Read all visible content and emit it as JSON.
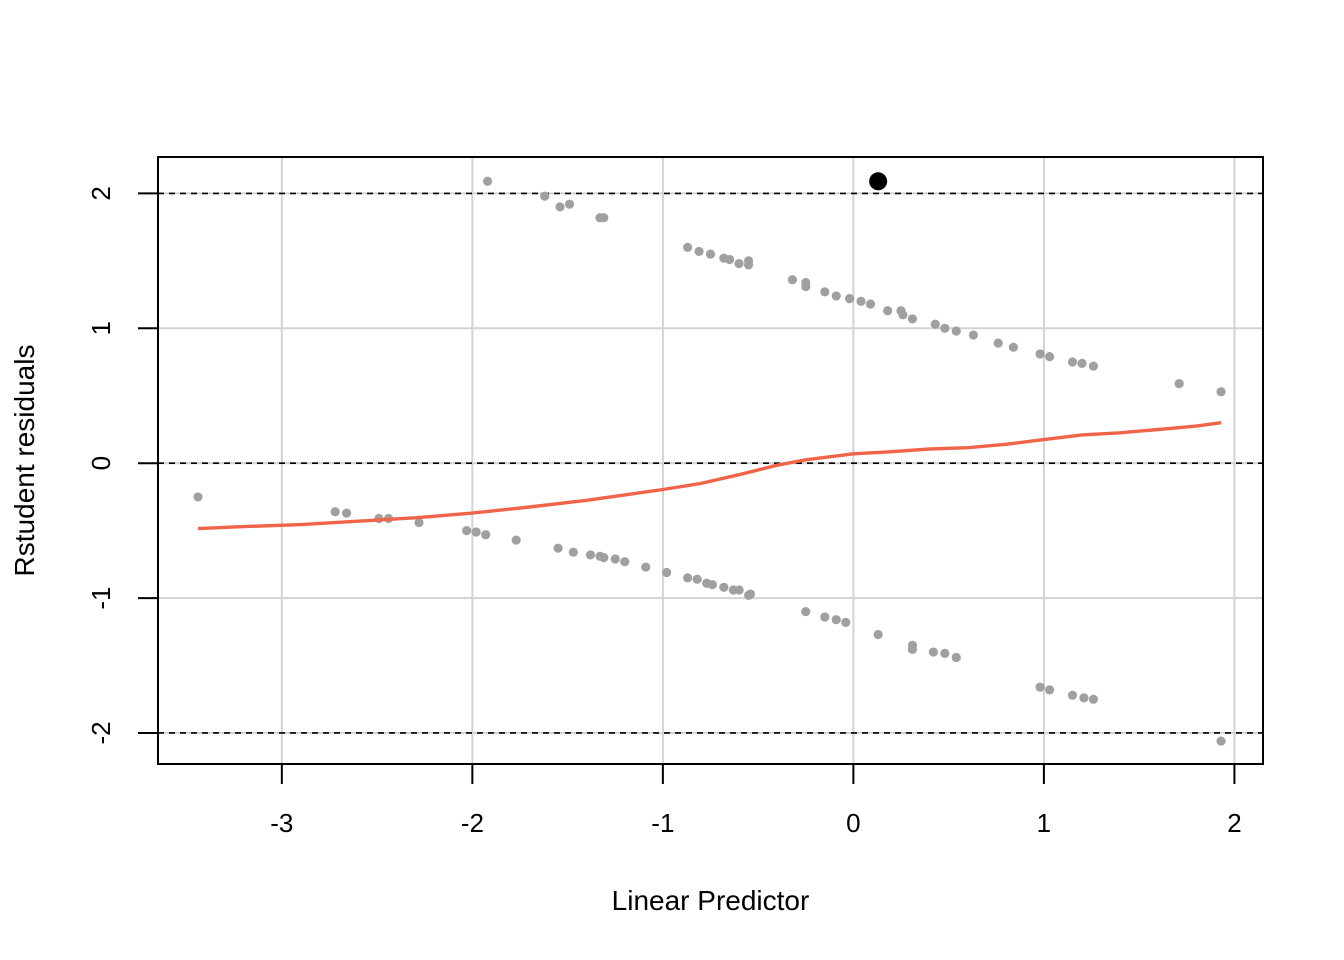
{
  "chart_data": {
    "type": "scatter",
    "title": "",
    "xlabel": "Linear Predictor",
    "ylabel": "Rstudent residuals",
    "xlim": [
      -3.65,
      2.15
    ],
    "ylim": [
      -2.23,
      2.27
    ],
    "xticks": [
      -3,
      -2,
      -1,
      0,
      1,
      2
    ],
    "yticks": [
      -2,
      -1,
      0,
      1,
      2
    ],
    "grid": true,
    "reference_lines": [
      -2,
      0,
      2
    ],
    "colors": {
      "points": "#a0a0a0",
      "smooth": "#f0654a",
      "highlight": "#000000",
      "grid": "#d3d3d3"
    },
    "series": [
      {
        "kind": "points",
        "points": [
          [
            -3.44,
            -0.25
          ],
          [
            -2.72,
            -0.36
          ],
          [
            -2.66,
            -0.37
          ],
          [
            -2.49,
            -0.41
          ],
          [
            -2.44,
            -0.41
          ],
          [
            -2.28,
            -0.44
          ],
          [
            -2.03,
            -0.5
          ],
          [
            -1.98,
            -0.51
          ],
          [
            -1.93,
            -0.53
          ],
          [
            -1.77,
            -0.57
          ],
          [
            -1.55,
            -0.63
          ],
          [
            -1.47,
            -0.66
          ],
          [
            -1.38,
            -0.68
          ],
          [
            -1.33,
            -0.69
          ],
          [
            -1.31,
            -0.7
          ],
          [
            -1.25,
            -0.71
          ],
          [
            -1.2,
            -0.73
          ],
          [
            -1.09,
            -0.77
          ],
          [
            -0.98,
            -0.81
          ],
          [
            -0.87,
            -0.85
          ],
          [
            -0.82,
            -0.86
          ],
          [
            -0.77,
            -0.89
          ],
          [
            -0.74,
            -0.9
          ],
          [
            -0.68,
            -0.92
          ],
          [
            -0.63,
            -0.94
          ],
          [
            -0.6,
            -0.94
          ],
          [
            -0.54,
            -0.97
          ],
          [
            -0.55,
            -0.98
          ],
          [
            -0.25,
            -1.1
          ],
          [
            -0.15,
            -1.14
          ],
          [
            -0.09,
            -1.16
          ],
          [
            -0.04,
            -1.18
          ],
          [
            0.13,
            -1.27
          ],
          [
            0.31,
            -1.35
          ],
          [
            0.31,
            -1.38
          ],
          [
            0.42,
            -1.4
          ],
          [
            0.48,
            -1.41
          ],
          [
            0.54,
            -1.44
          ],
          [
            0.98,
            -1.66
          ],
          [
            1.03,
            -1.68
          ],
          [
            1.15,
            -1.72
          ],
          [
            1.21,
            -1.74
          ],
          [
            1.26,
            -1.75
          ],
          [
            1.93,
            -2.06
          ],
          [
            -1.92,
            2.09
          ],
          [
            -1.62,
            1.98
          ],
          [
            -1.54,
            1.9
          ],
          [
            -1.49,
            1.92
          ],
          [
            -1.33,
            1.82
          ],
          [
            -1.31,
            1.82
          ],
          [
            -0.87,
            1.6
          ],
          [
            -0.81,
            1.57
          ],
          [
            -0.75,
            1.55
          ],
          [
            -0.68,
            1.52
          ],
          [
            -0.65,
            1.51
          ],
          [
            -0.6,
            1.48
          ],
          [
            -0.55,
            1.5
          ],
          [
            -0.55,
            1.47
          ],
          [
            -0.32,
            1.36
          ],
          [
            -0.25,
            1.34
          ],
          [
            -0.25,
            1.31
          ],
          [
            -0.15,
            1.27
          ],
          [
            -0.09,
            1.24
          ],
          [
            -0.02,
            1.22
          ],
          [
            0.04,
            1.2
          ],
          [
            0.09,
            1.18
          ],
          [
            0.18,
            1.13
          ],
          [
            0.25,
            1.13
          ],
          [
            0.26,
            1.1
          ],
          [
            0.31,
            1.07
          ],
          [
            0.43,
            1.03
          ],
          [
            0.48,
            1.0
          ],
          [
            0.54,
            0.98
          ],
          [
            0.63,
            0.95
          ],
          [
            0.76,
            0.89
          ],
          [
            0.84,
            0.86
          ],
          [
            0.98,
            0.81
          ],
          [
            1.03,
            0.79
          ],
          [
            1.15,
            0.75
          ],
          [
            1.2,
            0.74
          ],
          [
            1.26,
            0.72
          ],
          [
            1.71,
            0.59
          ],
          [
            1.93,
            0.53
          ]
        ]
      },
      {
        "kind": "highlight",
        "points": [
          [
            0.13,
            2.09
          ]
        ]
      },
      {
        "kind": "smooth",
        "points": [
          [
            -3.44,
            -0.485
          ],
          [
            -3.2,
            -0.47
          ],
          [
            -2.9,
            -0.455
          ],
          [
            -2.6,
            -0.43
          ],
          [
            -2.3,
            -0.405
          ],
          [
            -2.0,
            -0.37
          ],
          [
            -1.7,
            -0.325
          ],
          [
            -1.4,
            -0.275
          ],
          [
            -1.2,
            -0.235
          ],
          [
            -1.0,
            -0.195
          ],
          [
            -0.8,
            -0.15
          ],
          [
            -0.6,
            -0.085
          ],
          [
            -0.4,
            -0.015
          ],
          [
            -0.25,
            0.025
          ],
          [
            0.0,
            0.07
          ],
          [
            0.2,
            0.085
          ],
          [
            0.4,
            0.105
          ],
          [
            0.6,
            0.115
          ],
          [
            0.8,
            0.14
          ],
          [
            1.0,
            0.175
          ],
          [
            1.2,
            0.21
          ],
          [
            1.4,
            0.225
          ],
          [
            1.6,
            0.25
          ],
          [
            1.8,
            0.275
          ],
          [
            1.93,
            0.3
          ]
        ]
      }
    ]
  }
}
